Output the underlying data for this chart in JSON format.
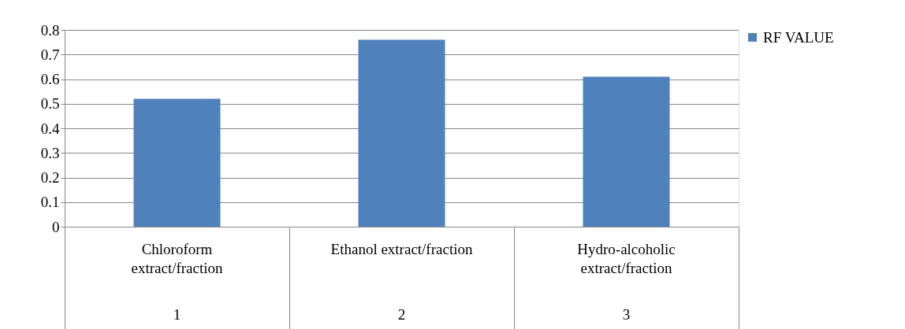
{
  "chart_data": {
    "type": "bar",
    "categories": [
      "Chloroform extract/fraction",
      "Ethanol extract/fraction",
      "Hydro-alcoholic extract/fraction"
    ],
    "series": [
      {
        "name": "RF VALUE",
        "color": "#4f81bd",
        "values": [
          0.52,
          0.76,
          0.61
        ]
      }
    ],
    "annotations": [
      "1",
      "2",
      "3"
    ],
    "ylim": [
      0,
      0.8
    ],
    "yticks": [
      0,
      0.1,
      0.2,
      0.3,
      0.4,
      0.5,
      0.6,
      0.7,
      0.8
    ],
    "grid": "y",
    "legend": "right"
  }
}
